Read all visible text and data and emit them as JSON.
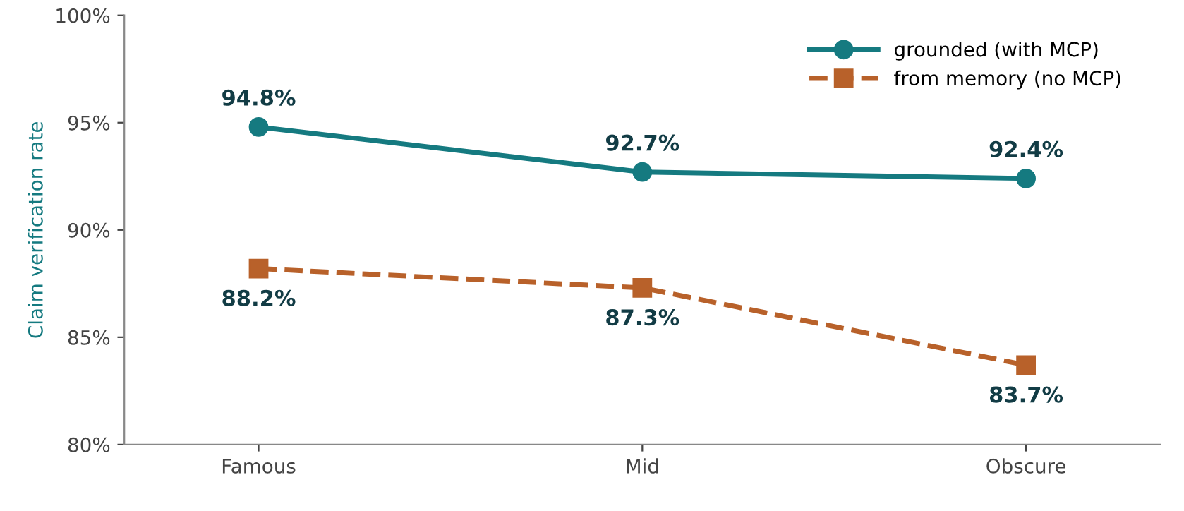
{
  "chart_data": {
    "type": "line",
    "ylabel": "Claim verification rate",
    "categories": [
      "Famous",
      "Mid",
      "Obscure"
    ],
    "series": [
      {
        "name": "grounded (with MCP)",
        "color": "#157a80",
        "values": [
          94.8,
          92.7,
          92.4
        ],
        "marker": "circle",
        "line_style": "solid",
        "value_labels": [
          "94.8%",
          "92.7%",
          "92.4%"
        ]
      },
      {
        "name": "from memory (no MCP)",
        "color": "#b8612a",
        "values": [
          88.2,
          87.3,
          83.7
        ],
        "marker": "square",
        "line_style": "dashed",
        "value_labels": [
          "88.2%",
          "87.3%",
          "83.7%"
        ]
      }
    ],
    "ylim": [
      80,
      100
    ],
    "yticks": [
      {
        "value": 80,
        "label": "80%"
      },
      {
        "value": 85,
        "label": "85%"
      },
      {
        "value": 90,
        "label": "90%"
      },
      {
        "value": 95,
        "label": "95%"
      },
      {
        "value": 100,
        "label": "100%"
      }
    ],
    "grid": false,
    "legend": "top right"
  }
}
